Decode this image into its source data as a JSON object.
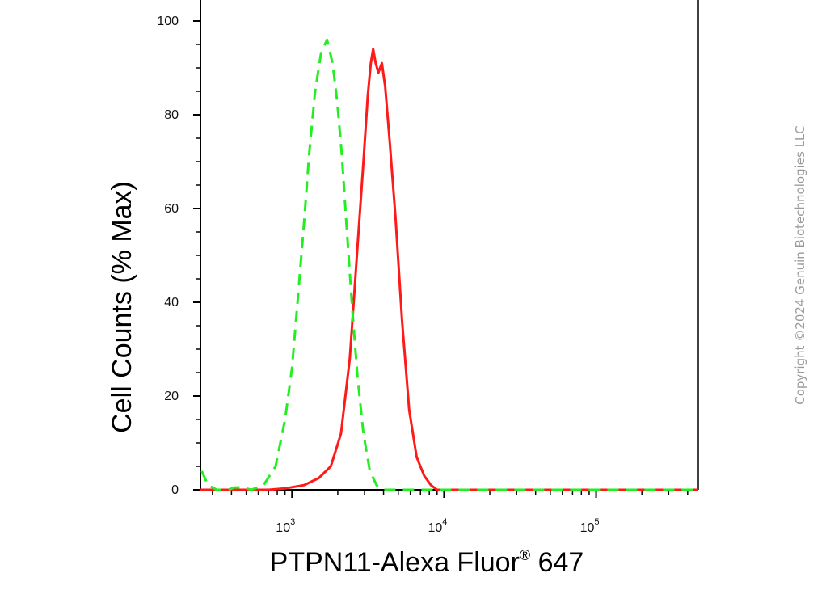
{
  "chart_data": {
    "type": "line",
    "xlabel": "PTPN11-Alexa Fluor",
    "xlabel_sup": "®",
    "xlabel_tail": " 647",
    "ylabel": "Cell Counts (% Max)",
    "x_scale": "log",
    "xlim": [
      250,
      470000
    ],
    "ylim": [
      0,
      100
    ],
    "y_ticks": [
      "0",
      "20",
      "40",
      "60",
      "80",
      "100"
    ],
    "x_ticks": [
      {
        "base": "10",
        "exp": "3"
      },
      {
        "base": "10",
        "exp": "4"
      },
      {
        "base": "10",
        "exp": "5"
      }
    ],
    "grid": false,
    "series": [
      {
        "color": "#ff1a1a",
        "dash": "solid",
        "points": [
          [
            250,
            0
          ],
          [
            700,
            0
          ],
          [
            900,
            0.3
          ],
          [
            1200,
            1
          ],
          [
            1500,
            2.5
          ],
          [
            1800,
            5
          ],
          [
            2100,
            12
          ],
          [
            2400,
            28
          ],
          [
            2700,
            52
          ],
          [
            2950,
            70
          ],
          [
            3150,
            84
          ],
          [
            3300,
            91
          ],
          [
            3420,
            94
          ],
          [
            3550,
            91
          ],
          [
            3700,
            89
          ],
          [
            3900,
            91
          ],
          [
            4100,
            86
          ],
          [
            4400,
            74
          ],
          [
            4800,
            58
          ],
          [
            5300,
            36
          ],
          [
            5900,
            17
          ],
          [
            6600,
            7
          ],
          [
            7400,
            3
          ],
          [
            8200,
            1
          ],
          [
            9000,
            0
          ],
          [
            470000,
            0
          ]
        ]
      },
      {
        "color": "#22ee22",
        "dash": "dashed",
        "points": [
          [
            255,
            4
          ],
          [
            280,
            1
          ],
          [
            320,
            0
          ],
          [
            380,
            0
          ],
          [
            420,
            0.5
          ],
          [
            480,
            0.5
          ],
          [
            540,
            0
          ],
          [
            650,
            1
          ],
          [
            780,
            5
          ],
          [
            900,
            15
          ],
          [
            1000,
            26
          ],
          [
            1100,
            42
          ],
          [
            1200,
            57
          ],
          [
            1300,
            72
          ],
          [
            1420,
            85
          ],
          [
            1550,
            93
          ],
          [
            1700,
            96
          ],
          [
            1850,
            91
          ],
          [
            1980,
            83
          ],
          [
            2120,
            72
          ],
          [
            2300,
            55
          ],
          [
            2500,
            38
          ],
          [
            2700,
            24
          ],
          [
            2950,
            12
          ],
          [
            3250,
            4
          ],
          [
            3600,
            1
          ],
          [
            4000,
            0
          ],
          [
            470000,
            0
          ]
        ]
      }
    ]
  },
  "watermark": "Copyright ©2024 Genuin Biotechnologies LLC"
}
